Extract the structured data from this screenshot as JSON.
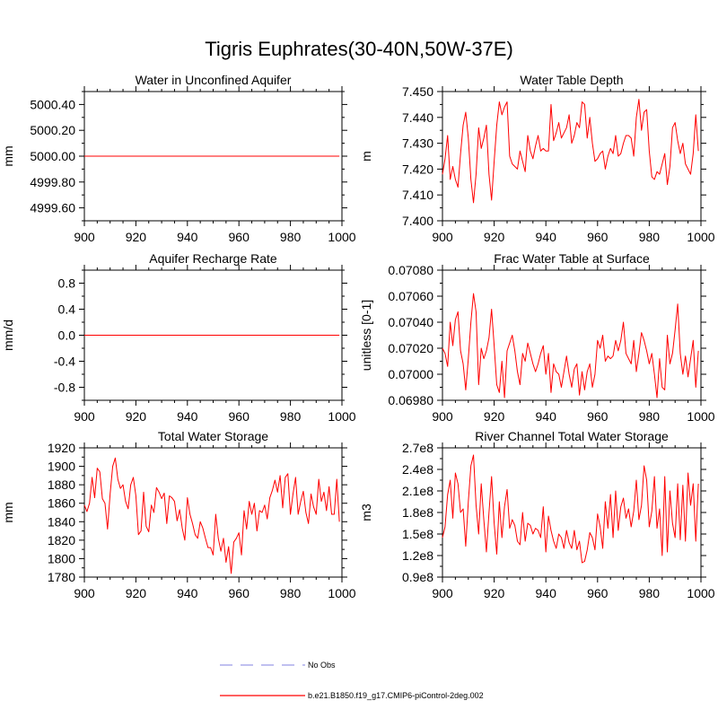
{
  "figure": {
    "title": "Tigris Euphrates(30-40N,50W-37E)"
  },
  "legend": {
    "items": [
      {
        "label": "No Obs",
        "color": "#9a9ae8",
        "dashed": true
      },
      {
        "label": "b.e21.B1850.f19_g17.CMIP6-piControl-2deg.002",
        "color": "#ff0000",
        "dashed": false
      }
    ]
  },
  "chart_data": [
    {
      "type": "line",
      "title": "Water in Unconfined Aquifer",
      "ylabel": "mm",
      "xlim": [
        900,
        1000
      ],
      "ylim": [
        4999.5,
        5000.5
      ],
      "xticks": [
        900,
        920,
        940,
        960,
        980,
        1000
      ],
      "yticks": [
        4999.6,
        4999.8,
        5000.0,
        5000.2,
        5000.4
      ],
      "ytick_labels": [
        "4999.60",
        "4999.80",
        "5000.00",
        "5000.20",
        "5000.40"
      ],
      "grid": false,
      "series": [
        {
          "color": "#ff0000",
          "x_start": 900,
          "x_end": 999,
          "constant": 5000.0
        }
      ]
    },
    {
      "type": "line",
      "title": "Water Table Depth",
      "ylabel": "m",
      "xlim": [
        900,
        1000
      ],
      "ylim": [
        7.4,
        7.45
      ],
      "xticks": [
        900,
        920,
        940,
        960,
        980,
        1000
      ],
      "yticks": [
        7.4,
        7.41,
        7.42,
        7.43,
        7.44,
        7.45
      ],
      "ytick_labels": [
        "7.400",
        "7.410",
        "7.420",
        "7.430",
        "7.440",
        "7.450"
      ],
      "grid": false,
      "series": [
        {
          "color": "#ff0000",
          "x_start": 900,
          "values": [
            7.418,
            7.424,
            7.433,
            7.416,
            7.421,
            7.416,
            7.413,
            7.426,
            7.437,
            7.442,
            7.432,
            7.416,
            7.407,
            7.418,
            7.436,
            7.428,
            7.432,
            7.437,
            7.418,
            7.408,
            7.423,
            7.437,
            7.446,
            7.441,
            7.444,
            7.446,
            7.425,
            7.422,
            7.421,
            7.42,
            7.427,
            7.423,
            7.419,
            7.433,
            7.427,
            7.424,
            7.429,
            7.433,
            7.427,
            7.428,
            7.427,
            7.427,
            7.445,
            7.431,
            7.434,
            7.438,
            7.432,
            7.434,
            7.436,
            7.441,
            7.43,
            7.433,
            7.438,
            7.436,
            7.446,
            7.445,
            7.432,
            7.44,
            7.43,
            7.423,
            7.424,
            7.426,
            7.427,
            7.42,
            7.425,
            7.428,
            7.426,
            7.433,
            7.425,
            7.426,
            7.43,
            7.433,
            7.433,
            7.432,
            7.425,
            7.44,
            7.447,
            7.435,
            7.442,
            7.443,
            7.427,
            7.417,
            7.416,
            7.419,
            7.418,
            7.422,
            7.426,
            7.414,
            7.421,
            7.436,
            7.438,
            7.431,
            7.426,
            7.43,
            7.422,
            7.42,
            7.418,
            7.426,
            7.441,
            7.427
          ]
        }
      ]
    },
    {
      "type": "line",
      "title": "Aquifer Recharge Rate",
      "ylabel": "mm/d",
      "xlim": [
        900,
        1000
      ],
      "ylim": [
        -1.0,
        1.0
      ],
      "xticks": [
        900,
        920,
        940,
        960,
        980,
        1000
      ],
      "yticks": [
        -0.8,
        -0.4,
        0.0,
        0.4,
        0.8
      ],
      "ytick_labels": [
        "-0.8",
        "-0.4",
        "0.0",
        "0.4",
        "0.8"
      ],
      "grid": false,
      "series": [
        {
          "color": "#ff0000",
          "x_start": 900,
          "x_end": 999,
          "constant": 0.0
        }
      ]
    },
    {
      "type": "line",
      "title": "Frac Water Table at Surface",
      "ylabel": "unitless [0-1]",
      "xlim": [
        900,
        1000
      ],
      "ylim": [
        0.0698,
        0.0708
      ],
      "xticks": [
        900,
        920,
        940,
        960,
        980,
        1000
      ],
      "yticks": [
        0.0698,
        0.07,
        0.0702,
        0.0704,
        0.0706,
        0.0708
      ],
      "ytick_labels": [
        "0.06980",
        "0.07000",
        "0.07020",
        "0.07040",
        "0.07060",
        "0.07080"
      ],
      "grid": false,
      "series": [
        {
          "color": "#ff0000",
          "x_start": 900,
          "values": [
            0.0702,
            0.07016,
            0.07006,
            0.0704,
            0.07022,
            0.07042,
            0.07048,
            0.07018,
            0.07008,
            0.06988,
            0.07012,
            0.0704,
            0.07062,
            0.07048,
            0.06992,
            0.0702,
            0.07012,
            0.07018,
            0.07028,
            0.0705,
            0.07022,
            0.06992,
            0.06986,
            0.0701,
            0.06982,
            0.07018,
            0.07024,
            0.0703,
            0.07018,
            0.07002,
            0.06992,
            0.07016,
            0.0701,
            0.07024,
            0.07016,
            0.07008,
            0.07002,
            0.07008,
            0.07016,
            0.07022,
            0.07,
            0.07016,
            0.06986,
            0.07008,
            0.07002,
            0.07,
            0.0699,
            0.07002,
            0.07014,
            0.07,
            0.0699,
            0.07004,
            0.07008,
            0.06984,
            0.07002,
            0.06988,
            0.07002,
            0.07008,
            0.0699,
            0.07,
            0.07026,
            0.0702,
            0.0703,
            0.0701,
            0.07014,
            0.07012,
            0.07014,
            0.07026,
            0.07018,
            0.07026,
            0.0704,
            0.07016,
            0.07012,
            0.07008,
            0.07026,
            0.07002,
            0.07016,
            0.07032,
            0.07026,
            0.07018,
            0.07008,
            0.07016,
            0.07,
            0.06982,
            0.07012,
            0.0699,
            0.06988,
            0.0703,
            0.07008,
            0.07016,
            0.07034,
            0.07054,
            0.07016,
            0.07,
            0.07014,
            0.06998,
            0.07012,
            0.07026,
            0.0699,
            0.07018
          ]
        }
      ]
    },
    {
      "type": "line",
      "title": "Total Water Storage",
      "ylabel": "mm",
      "xlim": [
        900,
        1000
      ],
      "ylim": [
        1780,
        1920
      ],
      "xticks": [
        900,
        920,
        940,
        960,
        980,
        1000
      ],
      "yticks": [
        1780,
        1800,
        1820,
        1840,
        1860,
        1880,
        1900,
        1920
      ],
      "ytick_labels": [
        "1780",
        "1800",
        "1820",
        "1840",
        "1860",
        "1880",
        "1900",
        "1920"
      ],
      "grid": false,
      "series": [
        {
          "color": "#ff0000",
          "x_start": 900,
          "values": [
            1858,
            1851,
            1860,
            1888,
            1866,
            1898,
            1894,
            1865,
            1860,
            1832,
            1870,
            1900,
            1909,
            1886,
            1876,
            1880,
            1862,
            1854,
            1880,
            1888,
            1868,
            1826,
            1830,
            1872,
            1835,
            1829,
            1858,
            1850,
            1877,
            1872,
            1865,
            1871,
            1838,
            1868,
            1866,
            1862,
            1841,
            1853,
            1833,
            1820,
            1866,
            1848,
            1838,
            1826,
            1822,
            1840,
            1833,
            1822,
            1812,
            1812,
            1804,
            1848,
            1822,
            1808,
            1822,
            1796,
            1813,
            1784,
            1818,
            1822,
            1828,
            1804,
            1852,
            1832,
            1862,
            1848,
            1860,
            1830,
            1852,
            1850,
            1858,
            1843,
            1866,
            1874,
            1885,
            1872,
            1890,
            1855,
            1888,
            1892,
            1848,
            1870,
            1888,
            1848,
            1862,
            1873,
            1850,
            1838,
            1870,
            1856,
            1848,
            1886,
            1862,
            1872,
            1852,
            1878,
            1848,
            1848,
            1886,
            1840
          ]
        }
      ]
    },
    {
      "type": "line",
      "title": "River Channel Total Water Storage",
      "ylabel": "m3",
      "xlim": [
        900,
        1000
      ],
      "ylim": [
        90000000.0,
        270000000.0
      ],
      "xticks": [
        900,
        920,
        940,
        960,
        980,
        1000
      ],
      "yticks": [
        90000000.0,
        120000000.0,
        150000000.0,
        180000000.0,
        210000000.0,
        240000000.0,
        270000000.0
      ],
      "ytick_labels": [
        "0.9e8",
        "1.2e8",
        "1.5e8",
        "1.8e8",
        "2.1e8",
        "2.4e8",
        "2.7e8"
      ],
      "grid": false,
      "series": [
        {
          "color": "#ff0000",
          "x_start": 900,
          "values": [
            145000000.0,
            160000000.0,
            205000000.0,
            225000000.0,
            172000000.0,
            235000000.0,
            220000000.0,
            180000000.0,
            185000000.0,
            133000000.0,
            195000000.0,
            245000000.0,
            260000000.0,
            190000000.0,
            150000000.0,
            220000000.0,
            170000000.0,
            125000000.0,
            180000000.0,
            230000000.0,
            165000000.0,
            122000000.0,
            195000000.0,
            145000000.0,
            188000000.0,
            212000000.0,
            158000000.0,
            170000000.0,
            162000000.0,
            140000000.0,
            135000000.0,
            180000000.0,
            140000000.0,
            165000000.0,
            162000000.0,
            150000000.0,
            158000000.0,
            155000000.0,
            145000000.0,
            188000000.0,
            125000000.0,
            175000000.0,
            155000000.0,
            140000000.0,
            130000000.0,
            150000000.0,
            145000000.0,
            130000000.0,
            155000000.0,
            138000000.0,
            130000000.0,
            155000000.0,
            128000000.0,
            140000000.0,
            110000000.0,
            112000000.0,
            128000000.0,
            152000000.0,
            145000000.0,
            128000000.0,
            178000000.0,
            160000000.0,
            130000000.0,
            195000000.0,
            158000000.0,
            205000000.0,
            145000000.0,
            210000000.0,
            155000000.0,
            188000000.0,
            200000000.0,
            172000000.0,
            185000000.0,
            160000000.0,
            182000000.0,
            225000000.0,
            170000000.0,
            190000000.0,
            245000000.0,
            225000000.0,
            160000000.0,
            182000000.0,
            230000000.0,
            158000000.0,
            185000000.0,
            120000000.0,
            230000000.0,
            125000000.0,
            210000000.0,
            165000000.0,
            145000000.0,
            220000000.0,
            142000000.0,
            218000000.0,
            140000000.0,
            235000000.0,
            190000000.0,
            220000000.0,
            140000000.0,
            220000000.0
          ]
        }
      ]
    }
  ]
}
